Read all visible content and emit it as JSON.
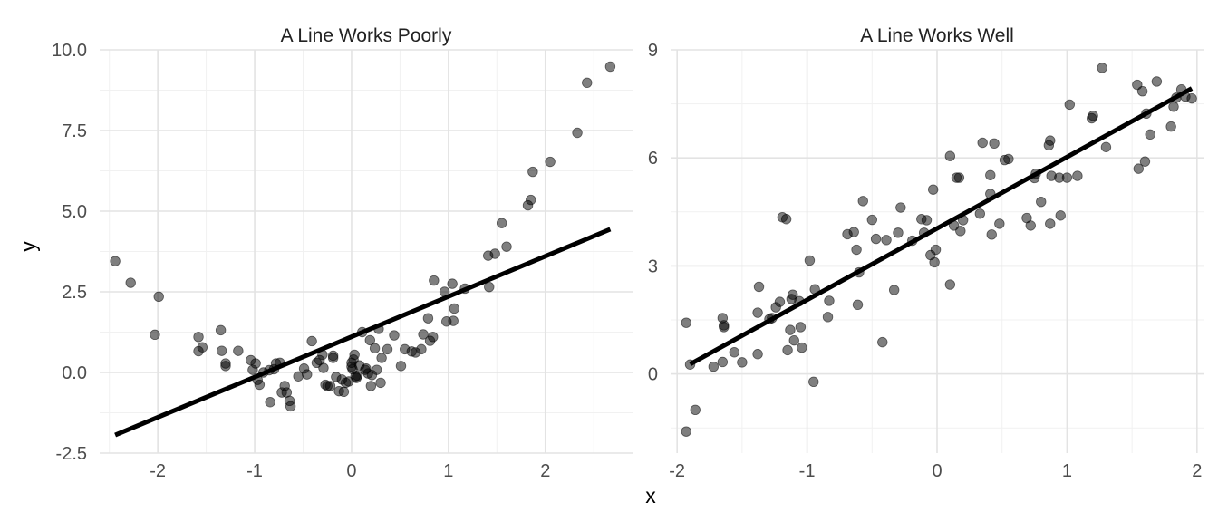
{
  "figure": {
    "xlabel": "x",
    "ylabel": "y"
  },
  "chart_data": [
    {
      "type": "scatter",
      "title": "A Line Works Poorly",
      "xlim": [
        -2.6,
        2.9
      ],
      "ylim": [
        -2.5,
        10.0
      ],
      "x_ticks": [
        -2,
        -1,
        0,
        1,
        2
      ],
      "x_tick_labels": [
        "-2",
        "-1",
        "0",
        "1",
        "2"
      ],
      "y_ticks": [
        -2.5,
        0.0,
        2.5,
        5.0,
        7.5,
        10.0
      ],
      "y_tick_labels": [
        "-2.5",
        "0.0",
        "2.5",
        "5.0",
        "7.5",
        "10.0"
      ],
      "grid": true,
      "points": [
        [
          -2.44,
          3.45
        ],
        [
          -2.28,
          2.78
        ],
        [
          -1.99,
          2.35
        ],
        [
          -2.03,
          1.17
        ],
        [
          -1.58,
          1.1
        ],
        [
          -1.58,
          0.66
        ],
        [
          -1.54,
          0.78
        ],
        [
          -1.35,
          1.31
        ],
        [
          -1.34,
          0.67
        ],
        [
          -1.3,
          0.28
        ],
        [
          -1.3,
          0.2
        ],
        [
          -1.17,
          0.67
        ],
        [
          -1.04,
          0.38
        ],
        [
          -1.02,
          0.08
        ],
        [
          -0.99,
          0.28
        ],
        [
          -0.97,
          -0.23
        ],
        [
          -0.95,
          -0.38
        ],
        [
          -0.91,
          0.0
        ],
        [
          -0.85,
          0.07
        ],
        [
          -0.84,
          -0.92
        ],
        [
          -0.8,
          0.1
        ],
        [
          -0.78,
          0.28
        ],
        [
          -0.74,
          0.3
        ],
        [
          -0.72,
          -0.62
        ],
        [
          -0.69,
          -0.42
        ],
        [
          -0.67,
          -0.62
        ],
        [
          -0.64,
          -0.88
        ],
        [
          -0.63,
          -1.05
        ],
        [
          -0.55,
          -0.12
        ],
        [
          -0.49,
          0.12
        ],
        [
          -0.46,
          -0.06
        ],
        [
          -0.41,
          0.97
        ],
        [
          -0.36,
          0.3
        ],
        [
          -0.33,
          0.38
        ],
        [
          -0.3,
          0.55
        ],
        [
          -0.29,
          0.14
        ],
        [
          -0.27,
          -0.38
        ],
        [
          -0.25,
          -0.42
        ],
        [
          -0.22,
          -0.42
        ],
        [
          -0.19,
          0.52
        ],
        [
          -0.19,
          0.45
        ],
        [
          -0.16,
          -0.14
        ],
        [
          -0.13,
          -0.58
        ],
        [
          -0.1,
          -0.22
        ],
        [
          -0.08,
          -0.6
        ],
        [
          -0.06,
          -0.32
        ],
        [
          -0.03,
          -0.28
        ],
        [
          0.0,
          0.3
        ],
        [
          0.0,
          0.18
        ],
        [
          0.01,
          0.1
        ],
        [
          0.02,
          0.4
        ],
        [
          0.03,
          0.55
        ],
        [
          0.04,
          -0.12
        ],
        [
          0.05,
          -0.17
        ],
        [
          0.06,
          -0.1
        ],
        [
          0.08,
          0.22
        ],
        [
          0.11,
          1.25
        ],
        [
          0.14,
          0.08
        ],
        [
          0.15,
          0.12
        ],
        [
          0.17,
          -0.03
        ],
        [
          0.19,
          1.0
        ],
        [
          0.2,
          -0.42
        ],
        [
          0.21,
          -0.08
        ],
        [
          0.24,
          0.75
        ],
        [
          0.26,
          0.08
        ],
        [
          0.28,
          1.35
        ],
        [
          0.3,
          -0.32
        ],
        [
          0.31,
          0.45
        ],
        [
          0.37,
          0.72
        ],
        [
          0.44,
          1.15
        ],
        [
          0.51,
          0.2
        ],
        [
          0.55,
          0.72
        ],
        [
          0.62,
          0.65
        ],
        [
          0.66,
          0.62
        ],
        [
          0.72,
          0.72
        ],
        [
          0.74,
          1.18
        ],
        [
          0.79,
          1.68
        ],
        [
          0.81,
          0.98
        ],
        [
          0.84,
          1.1
        ],
        [
          0.85,
          2.85
        ],
        [
          0.96,
          2.5
        ],
        [
          0.98,
          1.58
        ],
        [
          1.04,
          2.75
        ],
        [
          1.05,
          1.6
        ],
        [
          1.06,
          1.98
        ],
        [
          1.17,
          2.6
        ],
        [
          1.41,
          3.62
        ],
        [
          1.42,
          2.65
        ],
        [
          1.48,
          3.68
        ],
        [
          1.55,
          4.63
        ],
        [
          1.6,
          3.9
        ],
        [
          1.82,
          5.18
        ],
        [
          1.85,
          5.35
        ],
        [
          1.87,
          6.22
        ],
        [
          2.05,
          6.53
        ],
        [
          2.33,
          7.43
        ],
        [
          2.43,
          8.98
        ],
        [
          2.67,
          9.48
        ]
      ],
      "fit_line": {
        "x": [
          -2.44,
          2.67
        ],
        "y": [
          -1.94,
          4.44
        ]
      }
    },
    {
      "type": "scatter",
      "title": "A Line Works Well",
      "xlim": [
        -2.05,
        2.05
      ],
      "ylim": [
        -2.2,
        9.0
      ],
      "x_ticks": [
        -2,
        -1,
        0,
        1,
        2
      ],
      "x_tick_labels": [
        "-2",
        "-1",
        "0",
        "1",
        "2"
      ],
      "y_ticks": [
        0,
        3,
        6,
        9
      ],
      "y_tick_labels": [
        "0",
        "3",
        "6",
        "9"
      ],
      "grid": true,
      "points": [
        [
          -1.93,
          -1.6
        ],
        [
          -1.93,
          1.42
        ],
        [
          -1.9,
          0.26
        ],
        [
          -1.86,
          -1.0
        ],
        [
          -1.72,
          0.2
        ],
        [
          -1.65,
          0.33
        ],
        [
          -1.65,
          1.55
        ],
        [
          -1.64,
          1.35
        ],
        [
          -1.64,
          1.3
        ],
        [
          -1.56,
          0.6
        ],
        [
          -1.5,
          0.32
        ],
        [
          -1.38,
          0.55
        ],
        [
          -1.38,
          1.7
        ],
        [
          -1.37,
          2.42
        ],
        [
          -1.29,
          1.52
        ],
        [
          -1.27,
          1.55
        ],
        [
          -1.24,
          1.85
        ],
        [
          -1.21,
          2.0
        ],
        [
          -1.19,
          4.35
        ],
        [
          -1.16,
          4.3
        ],
        [
          -1.15,
          0.66
        ],
        [
          -1.13,
          1.22
        ],
        [
          -1.12,
          2.08
        ],
        [
          -1.11,
          2.2
        ],
        [
          -1.1,
          0.93
        ],
        [
          -1.06,
          2.02
        ],
        [
          -1.05,
          1.3
        ],
        [
          -1.04,
          0.73
        ],
        [
          -0.98,
          3.15
        ],
        [
          -0.95,
          -0.22
        ],
        [
          -0.94,
          2.35
        ],
        [
          -0.84,
          1.58
        ],
        [
          -0.83,
          2.03
        ],
        [
          -0.69,
          3.88
        ],
        [
          -0.64,
          3.94
        ],
        [
          -0.62,
          3.45
        ],
        [
          -0.61,
          1.92
        ],
        [
          -0.6,
          2.82
        ],
        [
          -0.57,
          4.8
        ],
        [
          -0.5,
          4.28
        ],
        [
          -0.47,
          3.75
        ],
        [
          -0.42,
          0.88
        ],
        [
          -0.39,
          3.72
        ],
        [
          -0.33,
          2.33
        ],
        [
          -0.3,
          3.92
        ],
        [
          -0.28,
          4.62
        ],
        [
          -0.19,
          3.7
        ],
        [
          -0.12,
          4.3
        ],
        [
          -0.1,
          3.92
        ],
        [
          -0.08,
          4.27
        ],
        [
          -0.05,
          3.3
        ],
        [
          -0.03,
          5.12
        ],
        [
          -0.02,
          3.1
        ],
        [
          -0.01,
          3.45
        ],
        [
          0.1,
          6.05
        ],
        [
          0.1,
          2.48
        ],
        [
          0.13,
          4.12
        ],
        [
          0.15,
          5.45
        ],
        [
          0.17,
          5.45
        ],
        [
          0.18,
          3.97
        ],
        [
          0.2,
          4.27
        ],
        [
          0.33,
          4.45
        ],
        [
          0.35,
          6.42
        ],
        [
          0.41,
          5.0
        ],
        [
          0.41,
          5.52
        ],
        [
          0.42,
          3.87
        ],
        [
          0.44,
          6.4
        ],
        [
          0.48,
          4.17
        ],
        [
          0.52,
          5.94
        ],
        [
          0.55,
          5.97
        ],
        [
          0.69,
          4.33
        ],
        [
          0.72,
          4.12
        ],
        [
          0.75,
          5.44
        ],
        [
          0.76,
          5.56
        ],
        [
          0.8,
          4.78
        ],
        [
          0.86,
          6.35
        ],
        [
          0.87,
          6.48
        ],
        [
          0.87,
          4.17
        ],
        [
          0.88,
          5.5
        ],
        [
          0.94,
          5.45
        ],
        [
          0.95,
          4.4
        ],
        [
          1.0,
          5.45
        ],
        [
          1.02,
          7.48
        ],
        [
          1.08,
          5.5
        ],
        [
          1.19,
          7.1
        ],
        [
          1.2,
          7.17
        ],
        [
          1.27,
          8.5
        ],
        [
          1.3,
          6.3
        ],
        [
          1.54,
          8.03
        ],
        [
          1.55,
          5.7
        ],
        [
          1.58,
          7.85
        ],
        [
          1.6,
          5.9
        ],
        [
          1.61,
          7.23
        ],
        [
          1.64,
          6.65
        ],
        [
          1.69,
          8.12
        ],
        [
          1.8,
          6.87
        ],
        [
          1.82,
          7.42
        ],
        [
          1.84,
          7.67
        ],
        [
          1.88,
          7.9
        ],
        [
          1.91,
          7.7
        ],
        [
          1.96,
          7.65
        ]
      ],
      "fit_line": {
        "x": [
          -1.9,
          1.96
        ],
        "y": [
          0.27,
          7.93
        ]
      }
    }
  ]
}
